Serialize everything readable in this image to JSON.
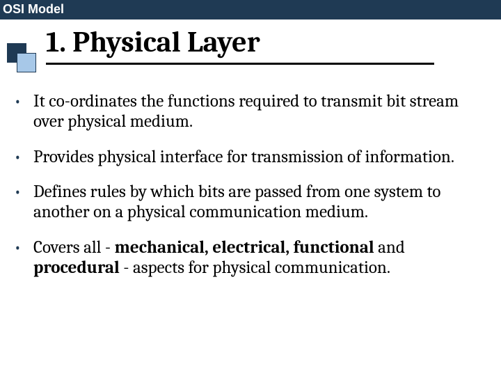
{
  "header": {
    "label": "OSI Model",
    "bg_color": "#1f3a54",
    "text_color": "#ffffff"
  },
  "decoration": {
    "back_color": "#1f3a54",
    "front_color": "#a7c8e8",
    "border_color": "#1f3a54"
  },
  "title": {
    "text": "1. Physical Layer",
    "fontsize": 42,
    "underline_color": "#000000",
    "underline_width": 558
  },
  "bullets": {
    "color": "#1f3a54",
    "fontsize": 25,
    "items": [
      {
        "text": "It co-ordinates the functions required to transmit bit stream over physical medium."
      },
      {
        "text": "Provides physical interface for transmission of information."
      },
      {
        "text": "Defines rules by which bits are passed from one system to another on a physical communication medium."
      },
      {
        "pre": "Covers all - ",
        "bold1": "mechanical, electrical, functional",
        "mid": " and ",
        "bold2": "procedural",
        "post": " - aspects for physical communication."
      }
    ]
  }
}
